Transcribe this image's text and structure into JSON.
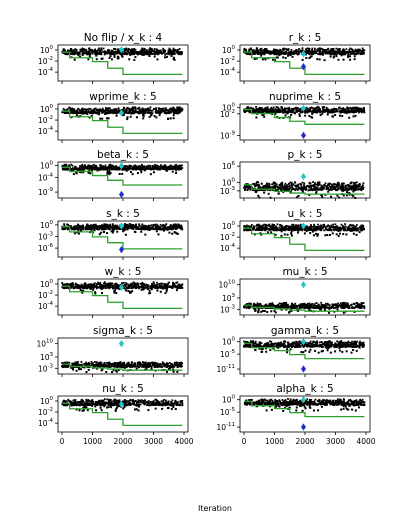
{
  "chart_data": {
    "type": "scatter",
    "xlabel": "Iteration",
    "xlim": [
      0,
      4000
    ],
    "x_ticks": [
      "0",
      "1000",
      "2000",
      "3000",
      "4000"
    ],
    "grid": false,
    "colors": {
      "scatter": "#000000",
      "lower_line": "#2ca02c",
      "marker_cyan": "#1ec8c8",
      "marker_blue": "#1f2fd0"
    },
    "panels": [
      {
        "title": "No flip / x_k : 4",
        "ylog": true,
        "yticks": [
          {
            "base": "10",
            "exp": "0"
          },
          {
            "base": "10",
            "exp": "-2"
          },
          {
            "base": "10",
            "exp": "-4"
          }
        ],
        "ylim_exp": [
          -5.6,
          0.9
        ],
        "scatter_band_exp": [
          -0.8,
          0.35
        ],
        "green_steps": [
          [
            0,
            -0.4
          ],
          [
            250,
            -1.4
          ],
          [
            1000,
            -2.1
          ],
          [
            1500,
            -3.3
          ],
          [
            2000,
            -4.4
          ],
          [
            3950,
            -4.4
          ]
        ],
        "cyan_marker_exp": 0.05,
        "blue_marker_exp": null,
        "marker_x": 1950
      },
      {
        "title": "r_k : 5",
        "ylog": true,
        "yticks": [
          {
            "base": "10",
            "exp": "0"
          },
          {
            "base": "10",
            "exp": "-2"
          },
          {
            "base": "10",
            "exp": "-4"
          }
        ],
        "ylim_exp": [
          -5.6,
          0.9
        ],
        "scatter_band_exp": [
          -0.8,
          0.35
        ],
        "green_steps": [
          [
            0,
            -0.4
          ],
          [
            250,
            -1.4
          ],
          [
            1000,
            -2.1
          ],
          [
            1500,
            -3.3
          ],
          [
            2000,
            -4.4
          ],
          [
            3950,
            -4.4
          ]
        ],
        "cyan_marker_exp": -0.7,
        "blue_marker_exp": -3.0,
        "marker_x": 1950
      },
      {
        "title": "wprime_k : 5",
        "ylog": true,
        "yticks": [
          {
            "base": "10",
            "exp": "0"
          },
          {
            "base": "10",
            "exp": "-2"
          },
          {
            "base": "10",
            "exp": "-4"
          }
        ],
        "ylim_exp": [
          -5.6,
          0.9
        ],
        "scatter_band_exp": [
          -0.8,
          0.35
        ],
        "green_steps": [
          [
            0,
            -0.4
          ],
          [
            250,
            -1.4
          ],
          [
            1000,
            -2.1
          ],
          [
            1500,
            -3.3
          ],
          [
            2000,
            -4.4
          ],
          [
            3950,
            -4.4
          ]
        ],
        "cyan_marker_exp": -0.7,
        "blue_marker_exp": null,
        "marker_x": 1950
      },
      {
        "title": "nuprime_k : 5",
        "ylog": true,
        "yticks": [
          {
            "base": "10",
            "exp": "0"
          },
          {
            "base": "10",
            "exp": "-2"
          },
          {
            "base": "10",
            "exp": "-9"
          }
        ],
        "ylim_exp": [
          -10.5,
          1.2
        ],
        "scatter_band_exp": [
          -1.6,
          0.35
        ],
        "green_steps": [
          [
            0,
            -0.6
          ],
          [
            250,
            -1.9
          ],
          [
            1000,
            -3.2
          ],
          [
            1500,
            -4.4
          ],
          [
            2000,
            -5.4
          ],
          [
            3950,
            -5.4
          ]
        ],
        "cyan_marker_exp": -0.2,
        "blue_marker_exp": -9.0,
        "marker_x": 1950
      },
      {
        "title": "beta_k : 5",
        "ylog": true,
        "yticks": [
          {
            "base": "10",
            "exp": "0"
          },
          {
            "base": "10",
            "exp": "-4"
          },
          {
            "base": "10",
            "exp": "-9"
          }
        ],
        "ylim_exp": [
          -11,
          1.2
        ],
        "scatter_band_exp": [
          -1.4,
          0.35
        ],
        "green_steps": [
          [
            0,
            -0.6
          ],
          [
            250,
            -2.0
          ],
          [
            1000,
            -3.4
          ],
          [
            1500,
            -5.0
          ],
          [
            2000,
            -6.6
          ],
          [
            3950,
            -6.6
          ]
        ],
        "cyan_marker_exp": -0.1,
        "blue_marker_exp": -9.8,
        "marker_x": 1950
      },
      {
        "title": "p_k : 5",
        "ylog": true,
        "yticks": [
          {
            "base": "10",
            "exp": "6"
          },
          {
            "base": "10",
            "exp": "0"
          },
          {
            "base": "10",
            "exp": "-3"
          }
        ],
        "ylim_exp": [
          -5.6,
          7.5
        ],
        "scatter_band_exp": [
          -2.8,
          0.4
        ],
        "green_steps": [
          [
            0,
            -0.8
          ],
          [
            250,
            -2.4
          ],
          [
            1000,
            -3.2
          ],
          [
            1500,
            -3.8
          ],
          [
            2000,
            -4.2
          ],
          [
            3950,
            -4.2
          ]
        ],
        "cyan_marker_exp": 2.2,
        "blue_marker_exp": null,
        "marker_x": 1950
      },
      {
        "title": "s_k : 5",
        "ylog": true,
        "yticks": [
          {
            "base": "10",
            "exp": "0"
          },
          {
            "base": "10",
            "exp": "-3"
          },
          {
            "base": "10",
            "exp": "-6"
          }
        ],
        "ylim_exp": [
          -8.3,
          1.0
        ],
        "scatter_band_exp": [
          -1.2,
          0.35
        ],
        "green_steps": [
          [
            0,
            -0.5
          ],
          [
            250,
            -1.8
          ],
          [
            1000,
            -3.1
          ],
          [
            1500,
            -4.6
          ],
          [
            2000,
            -6.2
          ],
          [
            3950,
            -6.2
          ]
        ],
        "cyan_marker_exp": -0.3,
        "blue_marker_exp": -6.4,
        "marker_x": 1950
      },
      {
        "title": "u_k : 5",
        "ylog": true,
        "yticks": [
          {
            "base": "10",
            "exp": "0"
          },
          {
            "base": "10",
            "exp": "-2"
          },
          {
            "base": "10",
            "exp": "-4"
          }
        ],
        "ylim_exp": [
          -5.6,
          0.9
        ],
        "scatter_band_exp": [
          -0.8,
          0.35
        ],
        "green_steps": [
          [
            0,
            -0.4
          ],
          [
            250,
            -1.4
          ],
          [
            1000,
            -2.1
          ],
          [
            1500,
            -3.3
          ],
          [
            2000,
            -4.4
          ],
          [
            3950,
            -4.4
          ]
        ],
        "cyan_marker_exp": 0.0,
        "blue_marker_exp": null,
        "marker_x": 1950
      },
      {
        "title": "w_k : 5",
        "ylog": true,
        "yticks": [
          {
            "base": "10",
            "exp": "0"
          },
          {
            "base": "10",
            "exp": "-2"
          },
          {
            "base": "10",
            "exp": "-4"
          }
        ],
        "ylim_exp": [
          -5.6,
          0.9
        ],
        "scatter_band_exp": [
          -0.8,
          0.35
        ],
        "green_steps": [
          [
            0,
            -0.4
          ],
          [
            250,
            -1.4
          ],
          [
            1000,
            -2.1
          ],
          [
            1500,
            -3.3
          ],
          [
            2000,
            -4.4
          ],
          [
            3950,
            -4.4
          ]
        ],
        "cyan_marker_exp": -0.6,
        "blue_marker_exp": null,
        "marker_x": 1950
      },
      {
        "title": "mu_k : 5",
        "ylog": true,
        "yticks": [
          {
            "base": "10",
            "exp": "10"
          },
          {
            "base": "10",
            "exp": "3"
          },
          {
            "base": "10",
            "exp": "-3"
          }
        ],
        "ylim_exp": [
          -6,
          13
        ],
        "scatter_band_exp": [
          -2.4,
          0.5
        ],
        "green_steps": [
          [
            0,
            -0.8
          ],
          [
            250,
            -2.0
          ],
          [
            1000,
            -2.8
          ],
          [
            1500,
            -3.4
          ],
          [
            2000,
            -4.0
          ],
          [
            3950,
            -4.0
          ]
        ],
        "cyan_marker_exp": 10.0,
        "blue_marker_exp": null,
        "marker_x": 1950
      },
      {
        "title": "sigma_k : 5",
        "ylog": true,
        "yticks": [
          {
            "base": "10",
            "exp": "10"
          },
          {
            "base": "10",
            "exp": "3"
          },
          {
            "base": "10",
            "exp": "-3"
          }
        ],
        "ylim_exp": [
          -6,
          13
        ],
        "scatter_band_exp": [
          -2.4,
          0.5
        ],
        "green_steps": [
          [
            0,
            -0.8
          ],
          [
            250,
            -2.0
          ],
          [
            1000,
            -2.8
          ],
          [
            1500,
            -3.4
          ],
          [
            2000,
            -4.0
          ],
          [
            3950,
            -4.0
          ]
        ],
        "cyan_marker_exp": 10.0,
        "blue_marker_exp": null,
        "marker_x": 1950
      },
      {
        "title": "gamma_k : 5",
        "ylog": true,
        "yticks": [
          {
            "base": "10",
            "exp": "0"
          },
          {
            "base": "10",
            "exp": "-5"
          },
          {
            "base": "10",
            "exp": "-11"
          }
        ],
        "ylim_exp": [
          -13,
          1.5
        ],
        "scatter_band_exp": [
          -2.2,
          0.4
        ],
        "green_steps": [
          [
            0,
            -0.6
          ],
          [
            250,
            -2.4
          ],
          [
            1000,
            -3.6
          ],
          [
            1500,
            -5.2
          ],
          [
            2000,
            -6.8
          ],
          [
            3950,
            -6.8
          ]
        ],
        "cyan_marker_exp": 0.0,
        "blue_marker_exp": -11.0,
        "marker_x": 1950
      },
      {
        "title": "nu_k : 5",
        "ylog": true,
        "yticks": [
          {
            "base": "10",
            "exp": "0"
          },
          {
            "base": "10",
            "exp": "-2"
          },
          {
            "base": "10",
            "exp": "-4"
          }
        ],
        "ylim_exp": [
          -5.6,
          0.9
        ],
        "scatter_band_exp": [
          -0.8,
          0.35
        ],
        "green_steps": [
          [
            0,
            -0.4
          ],
          [
            250,
            -1.4
          ],
          [
            1000,
            -2.1
          ],
          [
            1500,
            -3.3
          ],
          [
            2000,
            -4.4
          ],
          [
            3950,
            -4.4
          ]
        ],
        "cyan_marker_exp": -0.6,
        "blue_marker_exp": null,
        "marker_x": 1950
      },
      {
        "title": "alpha_k : 5",
        "ylog": true,
        "yticks": [
          {
            "base": "10",
            "exp": "0"
          },
          {
            "base": "10",
            "exp": "-5"
          },
          {
            "base": "10",
            "exp": "-11"
          }
        ],
        "ylim_exp": [
          -13,
          1.5
        ],
        "scatter_band_exp": [
          -2.2,
          0.4
        ],
        "green_steps": [
          [
            0,
            -0.6
          ],
          [
            250,
            -2.4
          ],
          [
            1000,
            -3.6
          ],
          [
            1500,
            -5.2
          ],
          [
            2000,
            -6.8
          ],
          [
            3950,
            -6.8
          ]
        ],
        "cyan_marker_exp": 0.0,
        "blue_marker_exp": -11.0,
        "marker_x": 1950
      }
    ]
  }
}
